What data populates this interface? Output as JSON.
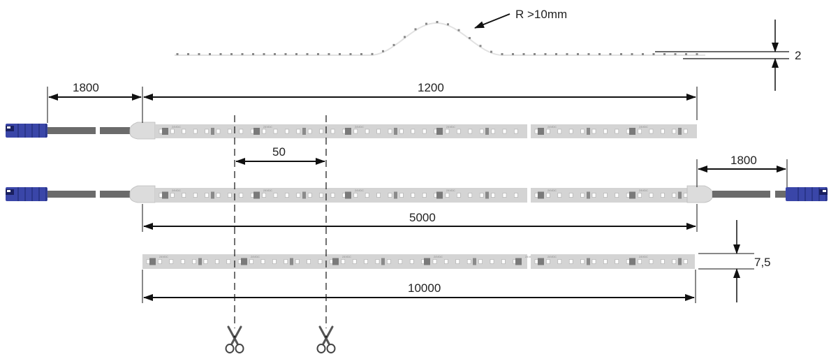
{
  "labels": {
    "bend_radius": "R >10mm",
    "thickness": "2",
    "cable_length_left": "1800",
    "short_strip_length": "1200",
    "cut_interval": "50",
    "cable_length_right": "1800",
    "medium_strip_length": "5000",
    "width": "7,5",
    "long_strip_length": "10000"
  },
  "strip_print": "24VDC",
  "colors": {
    "connector": "#3a46a8",
    "cable": "#6b6b6b",
    "strip": "#d4d4d4",
    "end_cap": "#dcdcdc",
    "line": "#111111"
  },
  "icons": [
    "scissors-icon",
    "scissors-icon"
  ]
}
